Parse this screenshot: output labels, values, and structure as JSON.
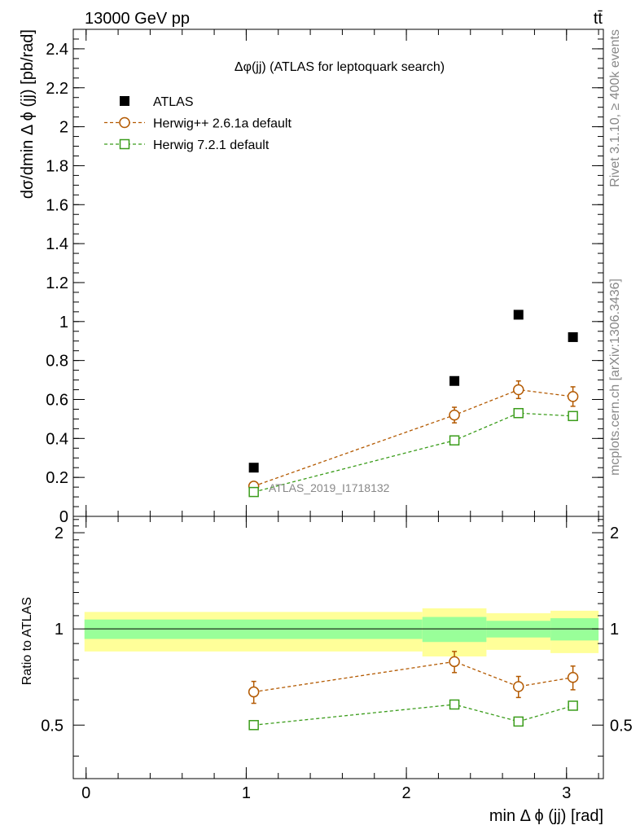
{
  "header": {
    "energy_label": "13000 GeV pp",
    "process_label": "tt̄"
  },
  "side_labels": {
    "rivet": "Rivet 3.1.10, ≥ 400k events",
    "mcplots": "mcplots.cern.ch [arXiv:1306.3436]"
  },
  "chart_data": [
    {
      "type": "scatter",
      "panel": "main",
      "title": "Δφ(jj) (ATLAS for leptoquark search)",
      "ylabel": "dσ/dmin Δ ϕ (jj) [pb/rad]",
      "analysis_label": "ATLAS_2019_I1718132",
      "xlim": [
        -0.08,
        3.23
      ],
      "ylim": [
        0,
        2.5
      ],
      "yticks": [
        {
          "v": 0,
          "label": "0"
        },
        {
          "v": 0.2,
          "label": "0.2"
        },
        {
          "v": 0.4,
          "label": "0.4"
        },
        {
          "v": 0.6,
          "label": "0.6"
        },
        {
          "v": 0.8,
          "label": "0.8"
        },
        {
          "v": 1.0,
          "label": "1"
        },
        {
          "v": 1.2,
          "label": "1.2"
        },
        {
          "v": 1.4,
          "label": "1.4"
        },
        {
          "v": 1.6,
          "label": "1.6"
        },
        {
          "v": 1.8,
          "label": "1.8"
        },
        {
          "v": 2.0,
          "label": "2"
        },
        {
          "v": 2.2,
          "label": "2.2"
        },
        {
          "v": 2.4,
          "label": "2.4"
        }
      ],
      "legend_position": "top-left",
      "series": [
        {
          "name": "ATLAS",
          "marker": "square-filled",
          "color": "#000000",
          "x": [
            1.047,
            2.3,
            2.7,
            3.04
          ],
          "y": [
            0.25,
            0.695,
            1.035,
            0.92
          ]
        },
        {
          "name": "Herwig++ 2.6.1a default",
          "marker": "circle-open",
          "color": "#b35900",
          "x": [
            1.047,
            2.3,
            2.7,
            3.04
          ],
          "y": [
            0.155,
            0.52,
            0.65,
            0.615
          ],
          "yerr": [
            0.012,
            0.04,
            0.045,
            0.05
          ]
        },
        {
          "name": "Herwig 7.2.1 default",
          "marker": "square-open",
          "color": "#3a9c1a",
          "x": [
            1.047,
            2.3,
            2.7,
            3.04
          ],
          "y": [
            0.125,
            0.39,
            0.53,
            0.515
          ],
          "yerr": [
            0.006,
            0.012,
            0.015,
            0.015
          ]
        }
      ]
    },
    {
      "type": "scatter",
      "panel": "ratio",
      "ylabel": "Ratio to ATLAS",
      "xlabel": "min Δ ϕ (jj) [rad]",
      "xlim": [
        -0.08,
        3.23
      ],
      "ylim": [
        0.34,
        2.25
      ],
      "xticks": [
        {
          "v": 0,
          "label": "0"
        },
        {
          "v": 1,
          "label": "1"
        },
        {
          "v": 2,
          "label": "2"
        },
        {
          "v": 3,
          "label": "3"
        }
      ],
      "yticks": [
        {
          "v": 0.5,
          "label": "0.5"
        },
        {
          "v": 1,
          "label": "1"
        },
        {
          "v": 2,
          "label": "2"
        }
      ],
      "bands": [
        {
          "x0": -0.01,
          "x1": 2.1,
          "yellow": [
            0.85,
            1.13
          ],
          "green": [
            0.93,
            1.07
          ]
        },
        {
          "x0": 2.1,
          "x1": 2.5,
          "yellow": [
            0.82,
            1.16
          ],
          "green": [
            0.91,
            1.09
          ]
        },
        {
          "x0": 2.5,
          "x1": 2.9,
          "yellow": [
            0.86,
            1.12
          ],
          "green": [
            0.94,
            1.06
          ]
        },
        {
          "x0": 2.9,
          "x1": 3.2,
          "yellow": [
            0.84,
            1.14
          ],
          "green": [
            0.92,
            1.08
          ]
        }
      ],
      "series": [
        {
          "name": "Herwig++ 2.6.1a default",
          "marker": "circle-open",
          "color": "#b35900",
          "x": [
            1.047,
            2.3,
            2.7,
            3.04
          ],
          "y": [
            0.635,
            0.79,
            0.66,
            0.705
          ],
          "yerr": [
            0.05,
            0.06,
            0.05,
            0.06
          ]
        },
        {
          "name": "Herwig 7.2.1 default",
          "marker": "square-open",
          "color": "#3a9c1a",
          "x": [
            1.047,
            2.3,
            2.7,
            3.04
          ],
          "y": [
            0.5,
            0.58,
            0.513,
            0.575
          ],
          "yerr": [
            0.008,
            0.01,
            0.01,
            0.01
          ]
        }
      ]
    }
  ],
  "colors": {
    "band_yellow": "#ffff99",
    "band_green": "#99ff99",
    "herwig_pp": "#b35900",
    "herwig7": "#3a9c1a"
  }
}
